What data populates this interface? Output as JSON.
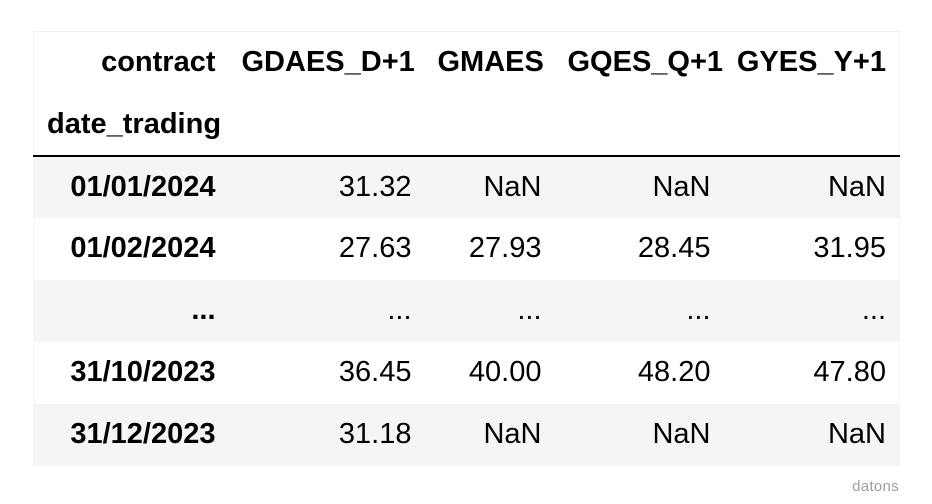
{
  "chart_data": {
    "type": "table",
    "title": "",
    "columns_axis_name": "contract",
    "index_name": "date_trading",
    "columns": [
      "GDAES_D+1",
      "GMAES",
      "GQES_Q+1",
      "GYES_Y+1"
    ],
    "rows": [
      {
        "index": "01/01/2024",
        "values": [
          "31.32",
          "NaN",
          "NaN",
          "NaN"
        ]
      },
      {
        "index": "01/02/2024",
        "values": [
          "27.63",
          "27.93",
          "28.45",
          "31.95"
        ]
      },
      {
        "index": "...",
        "values": [
          "...",
          "...",
          "...",
          "..."
        ]
      },
      {
        "index": "31/10/2023",
        "values": [
          "36.45",
          "40.00",
          "48.20",
          "47.80"
        ]
      },
      {
        "index": "31/12/2023",
        "values": [
          "31.18",
          "NaN",
          "NaN",
          "NaN"
        ]
      }
    ],
    "layout_hints": {
      "striped_rows": true,
      "first_body_row_shaded": true,
      "header_rule": "2px solid black",
      "value_alignment": "right",
      "index_alignment": "right"
    }
  },
  "watermark": {
    "label": "datons"
  },
  "colors": {
    "background": "#ffffff",
    "row_stripe": "#f5f5f5",
    "text": "#000000",
    "header_rule": "#000000",
    "table_border": "#f0f0f0",
    "watermark_text": "#9e9e9e"
  }
}
